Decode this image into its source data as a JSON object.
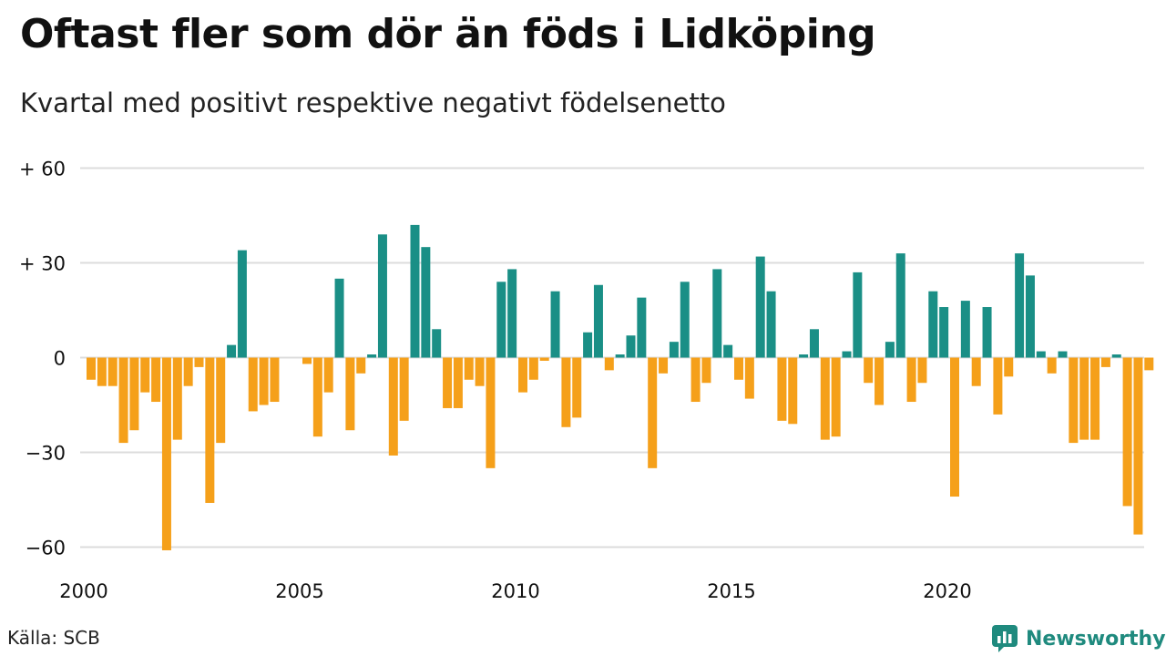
{
  "title": "Oftast fler som dör än föds i Lidköping",
  "subtitle": "Kvartal med positivt respektive negativt födelsenetto",
  "source": "Källa: SCB",
  "brand": "Newsworthy",
  "colors": {
    "positive": "#1a8f86",
    "negative": "#f5a01a",
    "grid": "#dcdcdc",
    "text": "#111111",
    "brand": "#1f8a7e"
  },
  "chart_data": {
    "type": "bar",
    "xlabel": "",
    "ylabel": "",
    "ylim": [
      -65,
      62
    ],
    "y_ticks": [
      {
        "value": 60,
        "label": "+ 60"
      },
      {
        "value": 30,
        "label": "+ 30"
      },
      {
        "value": 0,
        "label": "0"
      },
      {
        "value": -30,
        "label": "−30"
      },
      {
        "value": -60,
        "label": "−60"
      }
    ],
    "x_ticks": [
      "2000",
      "2005",
      "2010",
      "2015",
      "2020"
    ],
    "start_year": 2000,
    "start_quarter": 1,
    "series": [
      {
        "values": [
          -7,
          -9,
          -9,
          -27,
          -23,
          -11,
          -14,
          -61,
          -26,
          -9,
          -3,
          -46,
          -27,
          4,
          34,
          -17,
          -15,
          -14,
          0,
          0,
          -2,
          -25,
          -11,
          25,
          -23,
          -5,
          1,
          39,
          -31,
          -20,
          42,
          35,
          9,
          -16,
          -16,
          -7,
          -9,
          -35,
          24,
          28,
          -11,
          -7,
          -1,
          21,
          -22,
          -19,
          8,
          23,
          -4,
          1,
          7,
          19,
          -35,
          -5,
          5,
          24,
          -14,
          -8,
          28,
          4,
          -7,
          -13,
          32,
          21,
          -20,
          -21,
          1,
          9,
          -26,
          -25,
          2,
          27,
          -8,
          -15,
          5,
          33,
          -14,
          -8,
          21,
          16,
          -44,
          18,
          -9,
          16,
          -18,
          -6,
          33,
          26,
          2,
          -5,
          2,
          -27,
          -26,
          -26,
          -3,
          1,
          -47,
          -56,
          -4
        ]
      }
    ]
  }
}
